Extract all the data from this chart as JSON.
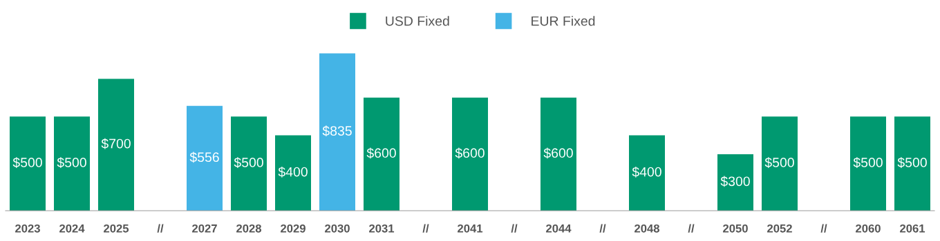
{
  "chart_data": {
    "type": "bar",
    "categories": [
      "2023",
      "2024",
      "2025",
      "//",
      "2027",
      "2028",
      "2029",
      "2030",
      "2031",
      "//",
      "2041",
      "//",
      "2044",
      "//",
      "2048",
      "//",
      "2050",
      "2052",
      "//",
      "2060",
      "2061"
    ],
    "series": [
      {
        "name": "USD Fixed",
        "color": "#009970",
        "values": [
          500,
          500,
          700,
          null,
          null,
          500,
          400,
          null,
          600,
          null,
          600,
          null,
          600,
          null,
          400,
          null,
          300,
          500,
          null,
          500,
          500
        ],
        "value_labels": [
          "$500",
          "$500",
          "$700",
          null,
          null,
          "$500",
          "$400",
          null,
          "$600",
          null,
          "$600",
          null,
          "$600",
          null,
          "$400",
          null,
          "$300",
          "$500",
          null,
          "$500",
          "$500"
        ]
      },
      {
        "name": "EUR Fixed",
        "color": "#44b4e6",
        "values": [
          null,
          null,
          null,
          null,
          556,
          null,
          null,
          835,
          null,
          null,
          null,
          null,
          null,
          null,
          null,
          null,
          null,
          null,
          null,
          null,
          null
        ],
        "value_labels": [
          null,
          null,
          null,
          null,
          "$556",
          null,
          null,
          "$835",
          null,
          null,
          null,
          null,
          null,
          null,
          null,
          null,
          null,
          null,
          null,
          null,
          null
        ]
      }
    ],
    "legend": "top",
    "grid": false
  }
}
